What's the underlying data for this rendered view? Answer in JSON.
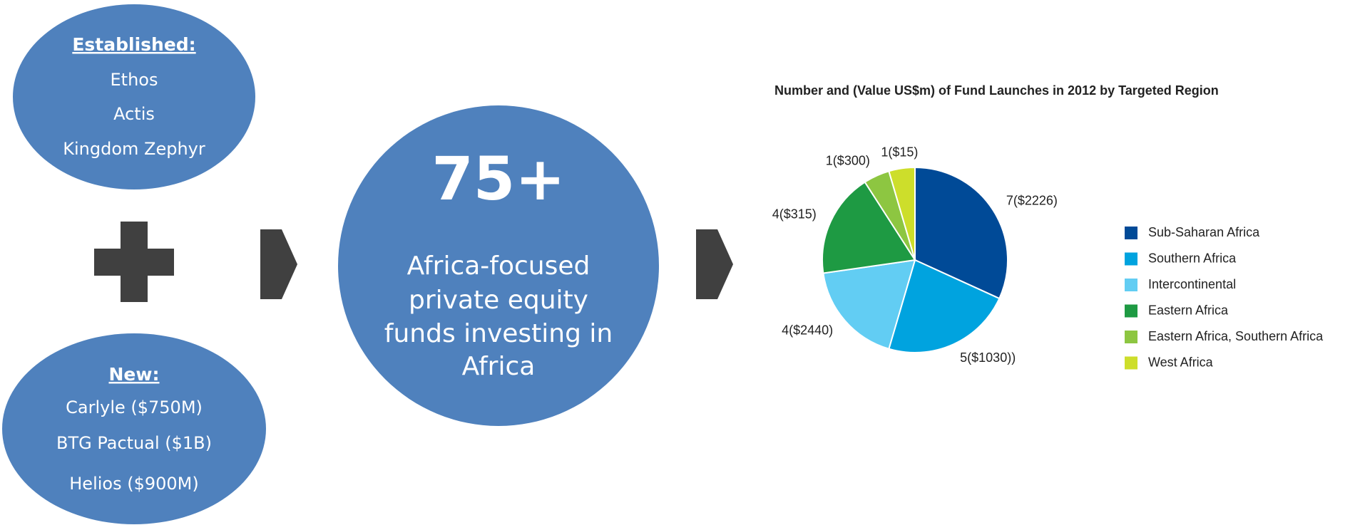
{
  "established": {
    "heading": "Established:",
    "items": [
      "Ethos",
      "Actis",
      "Kingdom Zephyr"
    ]
  },
  "new": {
    "heading": "New:",
    "items": [
      "Carlyle ($750M)",
      "BTG Pactual ($1B)",
      "Helios ($900M)"
    ]
  },
  "summary": {
    "number": "75+",
    "lines": [
      "Africa-focused",
      "private equity",
      "funds investing in",
      "Africa"
    ]
  },
  "chart_data": {
    "type": "pie",
    "title": "Number and (Value US$m) of Fund Launches in 2012 by Targeted Region",
    "categories": [
      "Sub-Saharan Africa",
      "Southern Africa",
      "Intercontinental",
      "Eastern Africa",
      "Eastern Africa, Southern Africa",
      "West Africa"
    ],
    "values": [
      7,
      5,
      4,
      4,
      1,
      1
    ],
    "value_labels": [
      "7($2226)",
      "5($1030))",
      "4($2440)",
      "4($315)",
      "1($300)",
      "1($15)"
    ],
    "colors": [
      "#004a97",
      "#00a3df",
      "#62cdf3",
      "#1e9a43",
      "#8dc641",
      "#cdde2b"
    ],
    "legend": "right"
  }
}
